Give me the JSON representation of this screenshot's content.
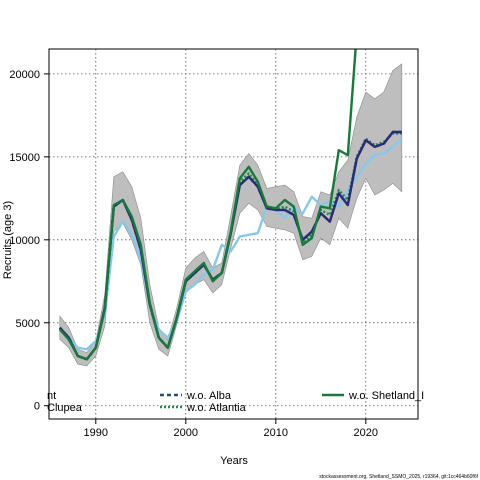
{
  "chart_data": {
    "type": "line",
    "xlabel": "Years",
    "ylabel": "Recruits (age 3)",
    "xlim": [
      1984.8,
      2025.8
    ],
    "ylim": [
      -800,
      21500
    ],
    "xticks": [
      1990,
      2000,
      2010,
      2020
    ],
    "yticks": [
      0,
      5000,
      10000,
      15000,
      20000
    ],
    "grid": true,
    "legend_position": "bottom",
    "years": [
      1986,
      1987,
      1988,
      1989,
      1990,
      1991,
      1992,
      1993,
      1994,
      1995,
      1996,
      1997,
      1998,
      1999,
      2000,
      2001,
      2002,
      2003,
      2004,
      2005,
      2006,
      2007,
      2008,
      2009,
      2010,
      2011,
      2012,
      2013,
      2014,
      2015,
      2016,
      2017,
      2018,
      2019,
      2020,
      2021,
      2022,
      2023,
      2024
    ],
    "band": {
      "color": "#bebebe",
      "lower": [
        4000,
        3500,
        2500,
        2400,
        3000,
        4800,
        10500,
        11000,
        10000,
        8500,
        5000,
        3400,
        3000,
        4900,
        6800,
        7300,
        7600,
        6800,
        7300,
        9500,
        11600,
        12200,
        11800,
        10800,
        10700,
        10600,
        10400,
        8800,
        9000,
        10100,
        9700,
        11300,
        10700,
        12500,
        13700,
        12700,
        13000,
        13400,
        12900
      ],
      "upper": [
        5400,
        4700,
        3400,
        3200,
        3900,
        6700,
        13800,
        14100,
        13200,
        11300,
        7300,
        4700,
        4000,
        5900,
        8300,
        8900,
        9300,
        8300,
        8600,
        11500,
        14500,
        15200,
        14500,
        13100,
        13200,
        13300,
        12900,
        11400,
        11300,
        12900,
        12700,
        14100,
        14800,
        17400,
        18900,
        18500,
        18900,
        20200,
        20600
      ]
    },
    "series": [
      {
        "name": "w.o. Shetland_I",
        "color": "#157a3a",
        "dash": "solid",
        "values": [
          4600,
          4000,
          3000,
          2800,
          3500,
          5800,
          12100,
          12400,
          11400,
          9700,
          6200,
          4100,
          3500,
          5300,
          7600,
          8100,
          8600,
          7500,
          8000,
          10500,
          13700,
          14400,
          13500,
          12000,
          11900,
          12400,
          12000,
          9700,
          10100,
          12000,
          11900,
          15400,
          15100,
          22500,
          null,
          null,
          null,
          null,
          null
        ]
      },
      {
        "name": "w.o. Alba",
        "color": "#1c4f7a",
        "dash": "4,3",
        "values": [
          4700,
          4100,
          3000,
          2800,
          3500,
          5900,
          12000,
          12400,
          11200,
          9400,
          6100,
          4100,
          3500,
          5300,
          7500,
          8000,
          8500,
          7600,
          8000,
          10400,
          13300,
          13800,
          13200,
          11900,
          11800,
          11800,
          11500,
          10000,
          10500,
          11600,
          11100,
          12800,
          12100,
          14900,
          16000,
          15600,
          15800,
          16500,
          16500
        ]
      },
      {
        "name": "w.o. Atlantia",
        "color": "#1f8a4c",
        "dash": "2,2",
        "values": [
          4650,
          4050,
          3000,
          2800,
          3500,
          5850,
          12050,
          12400,
          11300,
          9500,
          6150,
          4100,
          3500,
          5300,
          7550,
          8050,
          8550,
          7550,
          8000,
          10450,
          13500,
          14000,
          13300,
          11950,
          11850,
          12000,
          11700,
          9800,
          10300,
          11800,
          11500,
          13000,
          12400,
          15000,
          16100,
          15700,
          15900,
          16400,
          16400
        ]
      },
      {
        "name": "",
        "color": "#2b2a78",
        "dash": "solid",
        "values": [
          4700,
          4100,
          3000,
          2800,
          3500,
          5900,
          12000,
          12400,
          11200,
          9400,
          6100,
          4100,
          3500,
          5300,
          7500,
          8000,
          8500,
          7600,
          8000,
          10400,
          13300,
          13800,
          13200,
          11900,
          11800,
          11800,
          11500,
          10000,
          10500,
          11600,
          11100,
          12800,
          12100,
          14900,
          16000,
          15600,
          15800,
          16500,
          16500
        ]
      },
      {
        "name": "",
        "color": "#86c8ec",
        "dash": "solid",
        "values": [
          4700,
          4100,
          3500,
          3400,
          3900,
          5500,
          10200,
          11100,
          10300,
          8900,
          6000,
          4600,
          4100,
          5100,
          6900,
          7300,
          7900,
          8200,
          9700,
          9300,
          10200,
          10300,
          10400,
          12000,
          11800,
          11300,
          11900,
          11600,
          12600,
          12100,
          12300,
          12000,
          13000,
          13800,
          14600,
          15100,
          15200,
          15600,
          16100
        ]
      }
    ],
    "legend": [
      {
        "label": "nt",
        "color": "#2b2a78",
        "dash": "solid"
      },
      {
        "label": "w.o. Alba",
        "color": "#1c4f7a",
        "dash": "4,3"
      },
      {
        "label": "w.o. Shetland_I",
        "color": "#157a3a",
        "dash": "solid"
      },
      {
        "label": "Clupea",
        "color": "#86c8ec",
        "dash": "solid"
      },
      {
        "label": "w.o. Atlantia",
        "color": "#1f8a4c",
        "dash": "2,2"
      }
    ],
    "footnote": "stockassessment.org, Shetland_SSMO_2025, r19364, git:1cc464b60f6f"
  }
}
